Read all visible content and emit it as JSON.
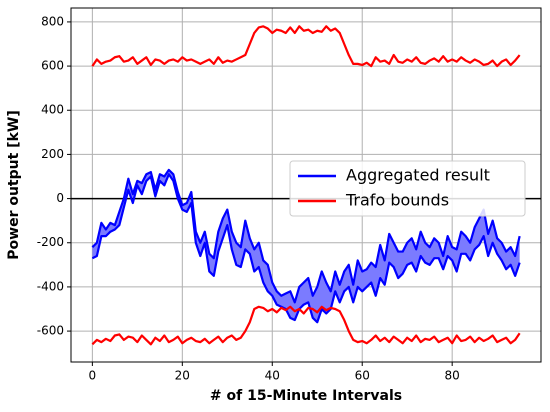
{
  "chart_data": {
    "type": "band-line",
    "xlabel": "# of 15-Minute Intervals",
    "ylabel": "Power output [kW]",
    "xlim": [
      -4.75,
      99.75
    ],
    "ylim": [
      -740,
      863
    ],
    "xticks": [
      0,
      20,
      40,
      60,
      80
    ],
    "yticks": [
      -600,
      -400,
      -200,
      0,
      200,
      400,
      600,
      800
    ],
    "grid": true,
    "hline": 0,
    "legend": "center right",
    "x": [
      0,
      1,
      2,
      3,
      4,
      5,
      6,
      7,
      8,
      9,
      10,
      11,
      12,
      13,
      14,
      15,
      16,
      17,
      18,
      19,
      20,
      21,
      22,
      23,
      24,
      25,
      26,
      27,
      28,
      29,
      30,
      31,
      32,
      33,
      34,
      35,
      36,
      37,
      38,
      39,
      40,
      41,
      42,
      43,
      44,
      45,
      46,
      47,
      48,
      49,
      50,
      51,
      52,
      53,
      54,
      55,
      56,
      57,
      58,
      59,
      60,
      61,
      62,
      63,
      64,
      65,
      66,
      67,
      68,
      69,
      70,
      71,
      72,
      73,
      74,
      75,
      76,
      77,
      78,
      79,
      80,
      81,
      82,
      83,
      84,
      85,
      86,
      87,
      88,
      89,
      90,
      91,
      92,
      93,
      94,
      95
    ],
    "series": [
      {
        "name": "Aggregated result",
        "color": "#0000ff",
        "fill": "#7b7bff",
        "upper": [
          -220,
          -200,
          -110,
          -140,
          -110,
          -120,
          -60,
          0,
          90,
          20,
          80,
          70,
          110,
          120,
          40,
          110,
          100,
          130,
          110,
          30,
          -30,
          -20,
          30,
          -150,
          -200,
          -150,
          -250,
          -270,
          -150,
          -90,
          -50,
          -150,
          -200,
          -220,
          -100,
          -180,
          -230,
          -200,
          -280,
          -300,
          -380,
          -420,
          -440,
          -430,
          -420,
          -470,
          -400,
          -380,
          -360,
          -440,
          -400,
          -330,
          -380,
          -420,
          -330,
          -390,
          -330,
          -300,
          -390,
          -280,
          -330,
          -320,
          -290,
          -310,
          -210,
          -280,
          -160,
          -200,
          -240,
          -240,
          -200,
          -180,
          -230,
          -150,
          -200,
          -220,
          -180,
          -200,
          -260,
          -170,
          -220,
          -230,
          -150,
          -170,
          -200,
          -130,
          -90,
          -50,
          -160,
          -100,
          -180,
          -200,
          -240,
          -220,
          -260,
          -170
        ],
        "lower": [
          -270,
          -260,
          -170,
          -170,
          -150,
          -140,
          -120,
          -40,
          40,
          -20,
          60,
          20,
          80,
          100,
          10,
          80,
          60,
          110,
          80,
          0,
          -50,
          -60,
          -20,
          -200,
          -260,
          -200,
          -330,
          -350,
          -240,
          -180,
          -120,
          -230,
          -300,
          -310,
          -230,
          -250,
          -330,
          -310,
          -380,
          -420,
          -440,
          -480,
          -490,
          -500,
          -540,
          -550,
          -500,
          -480,
          -470,
          -540,
          -560,
          -500,
          -520,
          -500,
          -420,
          -470,
          -420,
          -400,
          -470,
          -400,
          -420,
          -400,
          -380,
          -440,
          -360,
          -390,
          -290,
          -310,
          -360,
          -340,
          -300,
          -290,
          -330,
          -260,
          -290,
          -300,
          -270,
          -270,
          -320,
          -260,
          -280,
          -330,
          -250,
          -250,
          -280,
          -230,
          -210,
          -170,
          -260,
          -200,
          -250,
          -280,
          -320,
          -300,
          -350,
          -290
        ]
      },
      {
        "name": "Trafo bounds",
        "color": "#ff0000",
        "upper": [
          600,
          630,
          610,
          620,
          625,
          640,
          645,
          620,
          625,
          640,
          610,
          625,
          640,
          605,
          630,
          625,
          610,
          625,
          630,
          620,
          640,
          625,
          630,
          620,
          610,
          620,
          630,
          610,
          640,
          615,
          625,
          620,
          630,
          640,
          650,
          700,
          750,
          775,
          780,
          770,
          750,
          765,
          760,
          750,
          775,
          750,
          780,
          760,
          765,
          750,
          760,
          755,
          780,
          760,
          770,
          750,
          700,
          650,
          610,
          610,
          605,
          615,
          600,
          640,
          620,
          625,
          610,
          650,
          620,
          615,
          630,
          620,
          640,
          615,
          610,
          625,
          635,
          620,
          645,
          620,
          630,
          620,
          640,
          625,
          615,
          630,
          620,
          605,
          610,
          625,
          600,
          620,
          630,
          605,
          625,
          650
        ],
        "lower": [
          -660,
          -640,
          -650,
          -635,
          -645,
          -620,
          -615,
          -640,
          -625,
          -630,
          -650,
          -620,
          -640,
          -660,
          -630,
          -645,
          -620,
          -650,
          -640,
          -625,
          -655,
          -640,
          -630,
          -645,
          -650,
          -635,
          -655,
          -640,
          -625,
          -650,
          -630,
          -620,
          -640,
          -630,
          -600,
          -560,
          -500,
          -490,
          -495,
          -510,
          -500,
          -515,
          -495,
          -505,
          -490,
          -510,
          -500,
          -520,
          -495,
          -500,
          -515,
          -490,
          -505,
          -495,
          -500,
          -510,
          -550,
          -600,
          -640,
          -650,
          -645,
          -655,
          -640,
          -620,
          -645,
          -630,
          -650,
          -625,
          -640,
          -655,
          -630,
          -645,
          -620,
          -650,
          -635,
          -640,
          -625,
          -650,
          -640,
          -630,
          -655,
          -620,
          -645,
          -640,
          -625,
          -650,
          -630,
          -645,
          -635,
          -620,
          -650,
          -640,
          -630,
          -655,
          -640,
          -610
        ]
      }
    ]
  }
}
